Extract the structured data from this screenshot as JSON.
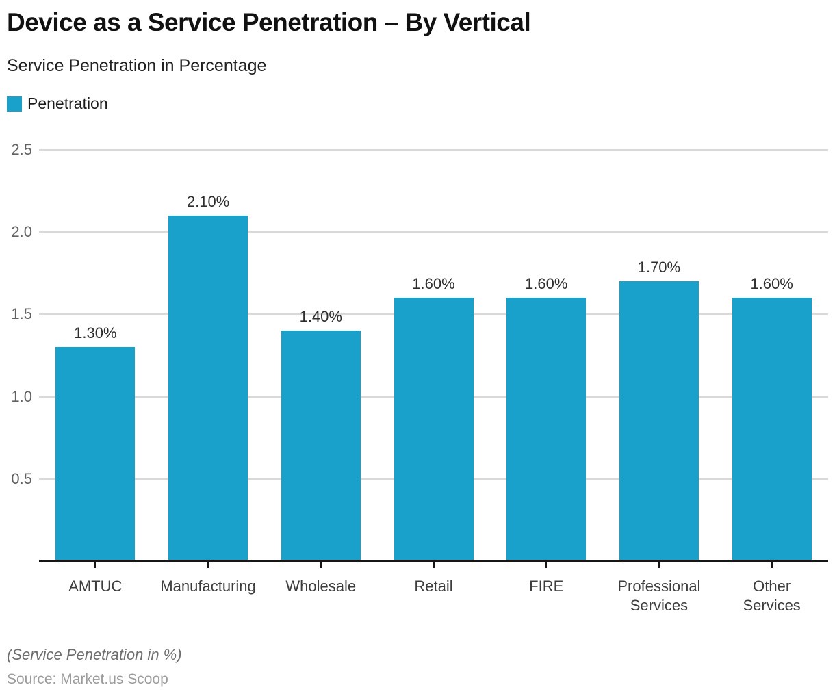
{
  "header": {
    "title": "Device as a Service Penetration – By Vertical",
    "subtitle": "Service Penetration in Percentage"
  },
  "legend": {
    "label": "Penetration",
    "swatch_color": "#1aa1cb"
  },
  "footer": {
    "note": "(Service Penetration in %)",
    "source": "Source: Market.us Scoop"
  },
  "chart_data": {
    "type": "bar",
    "title": "Device as a Service Penetration – By Vertical",
    "subtitle": "Service Penetration in Percentage",
    "series_name": "Penetration",
    "categories": [
      "AMTUC",
      "Manufacturing",
      "Wholesale",
      "Retail",
      "FIRE",
      "Professional Services",
      "Other Services"
    ],
    "category_label_lines": [
      [
        "AMTUC"
      ],
      [
        "Manufacturing"
      ],
      [
        "Wholesale"
      ],
      [
        "Retail"
      ],
      [
        "FIRE"
      ],
      [
        "Professional",
        "Services"
      ],
      [
        "Other",
        "Services"
      ]
    ],
    "values": [
      1.3,
      2.1,
      1.4,
      1.6,
      1.6,
      1.7,
      1.6
    ],
    "value_labels": [
      "1.30%",
      "2.10%",
      "1.40%",
      "1.60%",
      "1.60%",
      "1.70%",
      "1.60%"
    ],
    "y_ticks": [
      0.5,
      1.0,
      1.5,
      2.0,
      2.5
    ],
    "y_tick_labels": [
      "0.5",
      "1.0",
      "1.5",
      "2.0",
      "2.5"
    ],
    "ylim": [
      0,
      2.5
    ],
    "xlabel": "",
    "ylabel": "",
    "grid": true,
    "legend_position": "top-left",
    "bar_color": "#1aa1cb",
    "gridline_color": "#d9d9d9",
    "axis_color": "#161616"
  }
}
